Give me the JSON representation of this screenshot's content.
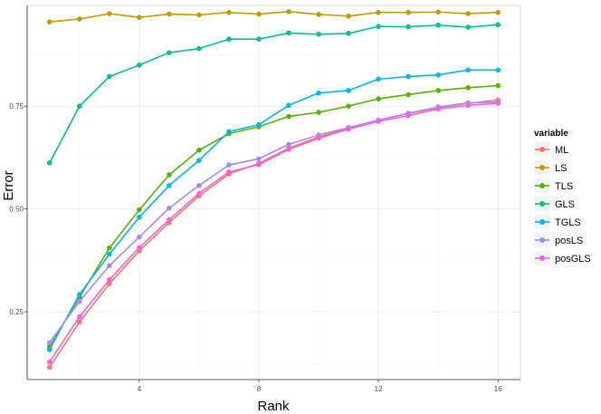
{
  "chart_data": {
    "type": "line",
    "xlabel": "Rank",
    "ylabel": "Error",
    "x": [
      1,
      2,
      3,
      4,
      5,
      6,
      7,
      8,
      9,
      10,
      11,
      12,
      13,
      14,
      15,
      16
    ],
    "xlim": [
      0.25,
      16.75
    ],
    "ylim": [
      0.085,
      0.995
    ],
    "xticks": [
      4,
      8,
      12,
      16
    ],
    "yticks": [
      0.25,
      0.5,
      0.75
    ],
    "ytick_labels": [
      "0.25",
      "0.50",
      "0.75"
    ],
    "grid": true,
    "legend_position": "right",
    "legend_title": "variable",
    "series": [
      {
        "name": "ML",
        "color": "#F8766D",
        "values": [
          0.115,
          0.225,
          0.318,
          0.398,
          0.467,
          0.532,
          0.585,
          0.611,
          0.648,
          0.675,
          0.697,
          0.716,
          0.732,
          0.746,
          0.757,
          0.765
        ]
      },
      {
        "name": "LS",
        "color": "#C49A00",
        "values": [
          0.955,
          0.962,
          0.975,
          0.966,
          0.974,
          0.972,
          0.978,
          0.974,
          0.98,
          0.973,
          0.969,
          0.978,
          0.978,
          0.979,
          0.975,
          0.978
        ]
      },
      {
        "name": "TLS",
        "color": "#53B400",
        "values": [
          0.165,
          0.285,
          0.405,
          0.498,
          0.583,
          0.643,
          0.683,
          0.7,
          0.725,
          0.735,
          0.75,
          0.768,
          0.778,
          0.788,
          0.795,
          0.8
        ]
      },
      {
        "name": "GLS",
        "color": "#00C094",
        "values": [
          0.612,
          0.75,
          0.822,
          0.85,
          0.88,
          0.89,
          0.913,
          0.913,
          0.928,
          0.925,
          0.927,
          0.944,
          0.943,
          0.947,
          0.942,
          0.948
        ]
      },
      {
        "name": "TGLS",
        "color": "#00B6EB",
        "values": [
          0.158,
          0.292,
          0.39,
          0.48,
          0.557,
          0.618,
          0.688,
          0.705,
          0.752,
          0.782,
          0.788,
          0.816,
          0.822,
          0.826,
          0.838,
          0.838
        ]
      },
      {
        "name": "posLS",
        "color": "#A58AFF",
        "values": [
          0.175,
          0.275,
          0.362,
          0.432,
          0.502,
          0.557,
          0.607,
          0.622,
          0.657,
          0.68,
          0.698,
          0.716,
          0.733,
          0.748,
          0.758,
          0.76
        ]
      },
      {
        "name": "posGLS",
        "color": "#FB61D7",
        "values": [
          0.128,
          0.238,
          0.328,
          0.406,
          0.474,
          0.538,
          0.59,
          0.608,
          0.645,
          0.672,
          0.694,
          0.713,
          0.727,
          0.743,
          0.752,
          0.757
        ]
      }
    ]
  }
}
